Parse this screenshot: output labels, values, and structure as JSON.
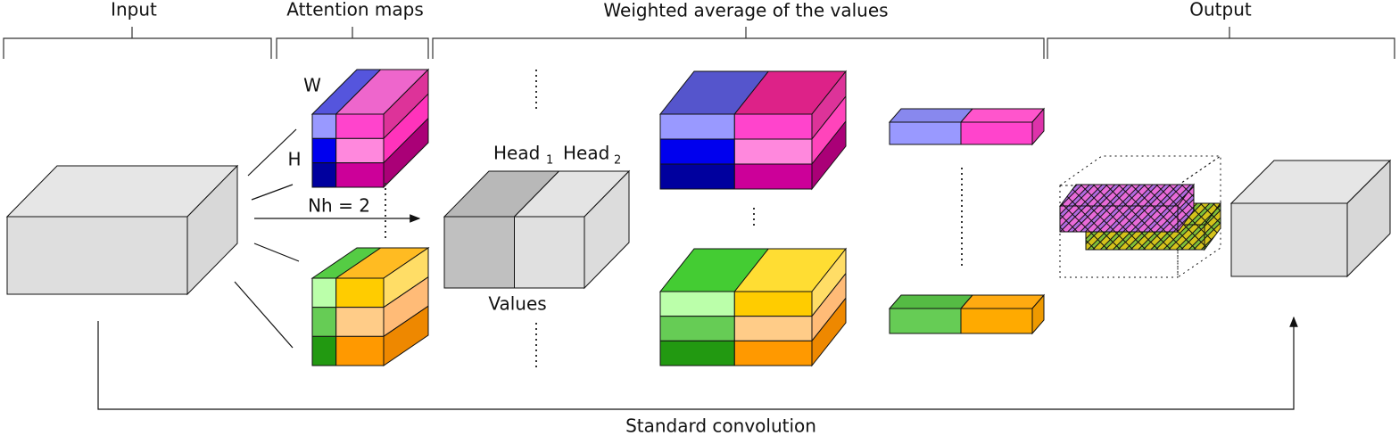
{
  "sections": {
    "input": "Input",
    "attention_maps": "Attention maps",
    "weighted_average": "Weighted average of the values",
    "output": "Output"
  },
  "labels": {
    "width": "W",
    "height": "H",
    "heads": "Nh = 2",
    "head_1": "Head",
    "head_1_index": "1",
    "head_2": "Head",
    "head_2_index": "2",
    "values": "Values",
    "skip": "Standard convolution"
  }
}
